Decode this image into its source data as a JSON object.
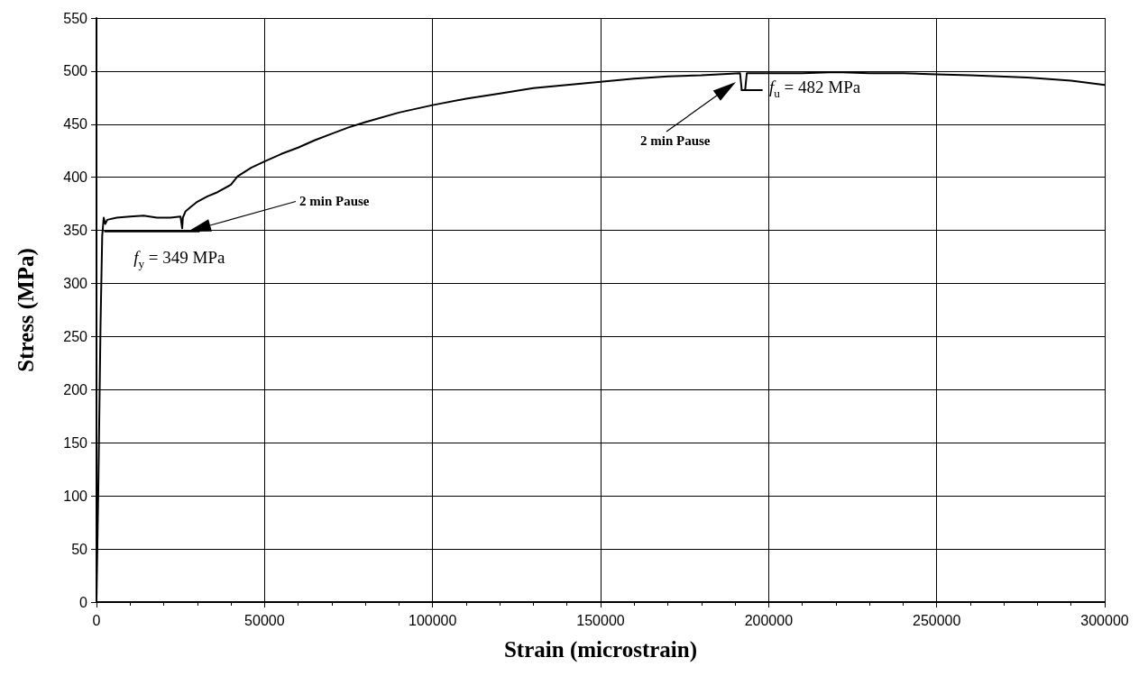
{
  "chart_data": {
    "type": "line",
    "xlabel": "Strain (microstrain)",
    "ylabel": "Stress (MPa)",
    "xlim": [
      0,
      300000
    ],
    "xticks": [
      0,
      50000,
      100000,
      150000,
      200000,
      250000,
      300000
    ],
    "ylim": [
      0,
      550
    ],
    "yticks": [
      0,
      50,
      100,
      150,
      200,
      250,
      300,
      350,
      400,
      450,
      500,
      550
    ],
    "grid": true,
    "marker": "none",
    "line_style": "solid",
    "series": [
      {
        "color": "#000000",
        "x": [
          0,
          600,
          1200,
          1700,
          2150,
          2600,
          3200,
          6000,
          10000,
          14000,
          18000,
          22000,
          25000,
          25500,
          25700,
          26500,
          28000,
          30000,
          33000,
          36000,
          40000,
          42000,
          46000,
          50000,
          55000,
          60000,
          65000,
          70000,
          75000,
          80000,
          90000,
          100000,
          110000,
          120000,
          130000,
          140000,
          150000,
          160000,
          170000,
          180000,
          191500,
          192000,
          193000,
          193500,
          200000,
          210000,
          220000,
          230000,
          240000,
          250000,
          260000,
          277000,
          290000,
          300000
        ],
        "values": [
          0,
          120,
          260,
          345,
          362,
          356,
          360,
          362,
          363,
          364,
          362,
          362,
          363,
          352,
          362,
          368,
          372,
          377,
          382,
          386,
          393,
          401,
          409,
          415,
          422,
          428,
          435,
          441,
          447,
          452,
          461,
          468,
          474,
          479,
          484,
          487,
          490,
          493,
          495,
          496,
          498,
          482,
          482,
          498,
          498,
          498,
          499,
          498,
          498,
          497,
          496,
          494,
          491,
          487
        ]
      },
      {
        "color": "#000000",
        "x": [
          2500,
          30500
        ],
        "values": [
          349,
          349
        ]
      },
      {
        "color": "#000000",
        "x": [
          192000,
          198000
        ],
        "values": [
          482,
          482
        ]
      }
    ],
    "annotations": [
      {
        "text": "f$_{y}$ = 349 MPa",
        "x": 3000,
        "y": 349
      },
      "2 min Pause",
      {
        "text": "f$_{u}$ = 482 MPa",
        "x": 198000,
        "y": 482
      },
      "2 min Pause"
    ]
  }
}
